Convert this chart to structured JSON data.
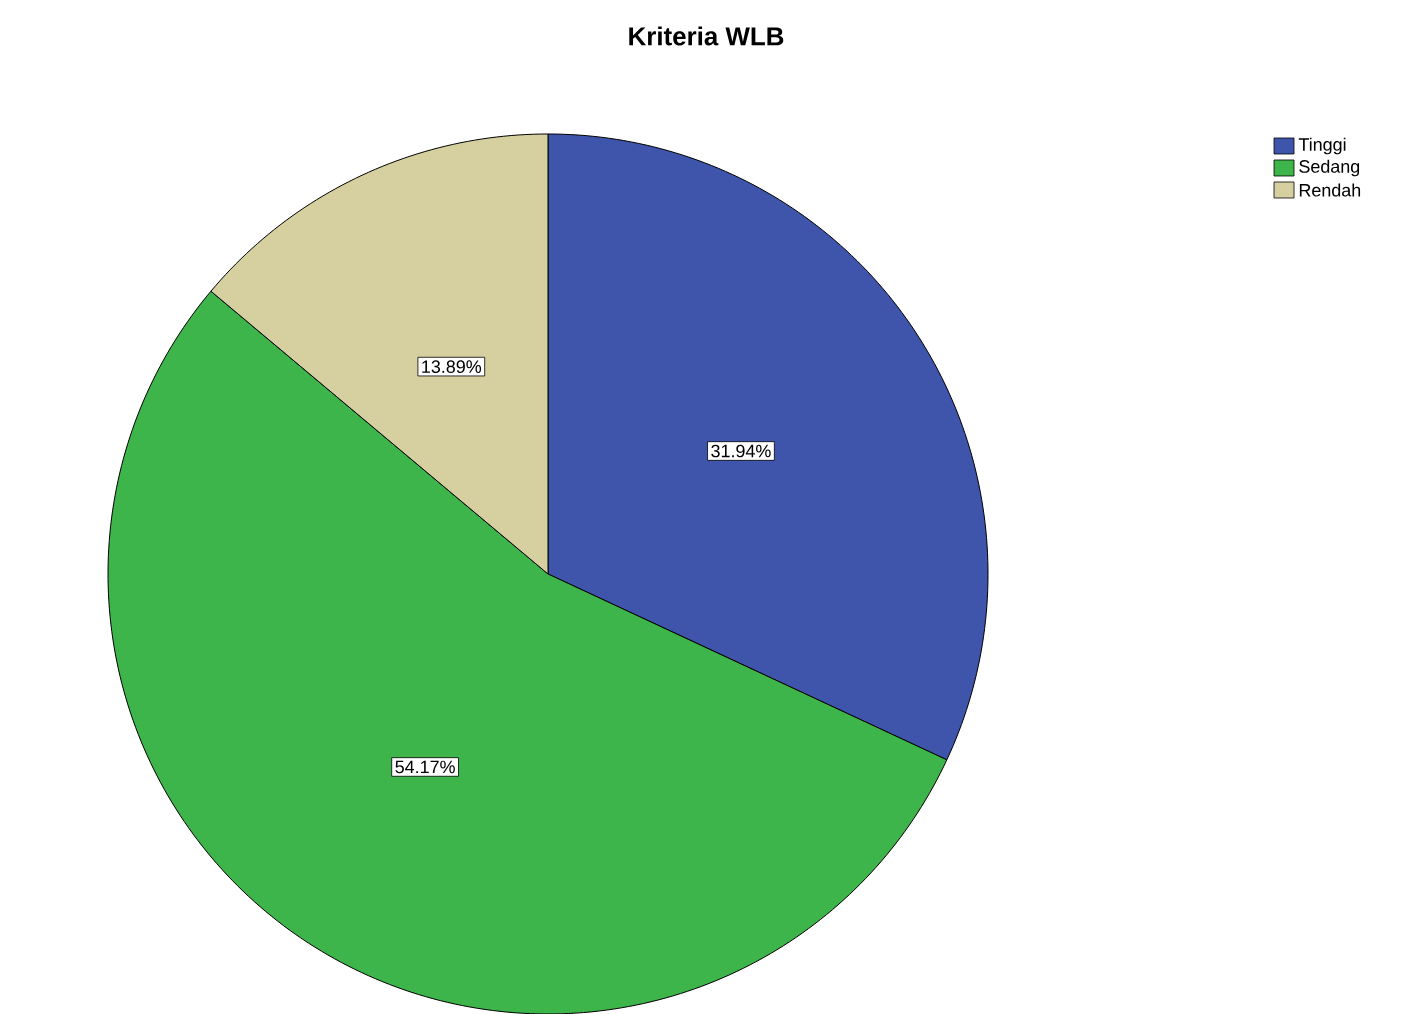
{
  "chart_data": {
    "type": "pie",
    "title": "Kriteria WLB",
    "categories": [
      "Tinggi",
      "Sedang",
      "Rendah"
    ],
    "values": [
      31.94,
      54.17,
      13.89
    ],
    "colors": [
      "#3e55ab",
      "#3db54a",
      "#d6d0a0"
    ],
    "value_labels": [
      "31.94%",
      "54.17%",
      "13.89%"
    ],
    "legend": "top right"
  }
}
